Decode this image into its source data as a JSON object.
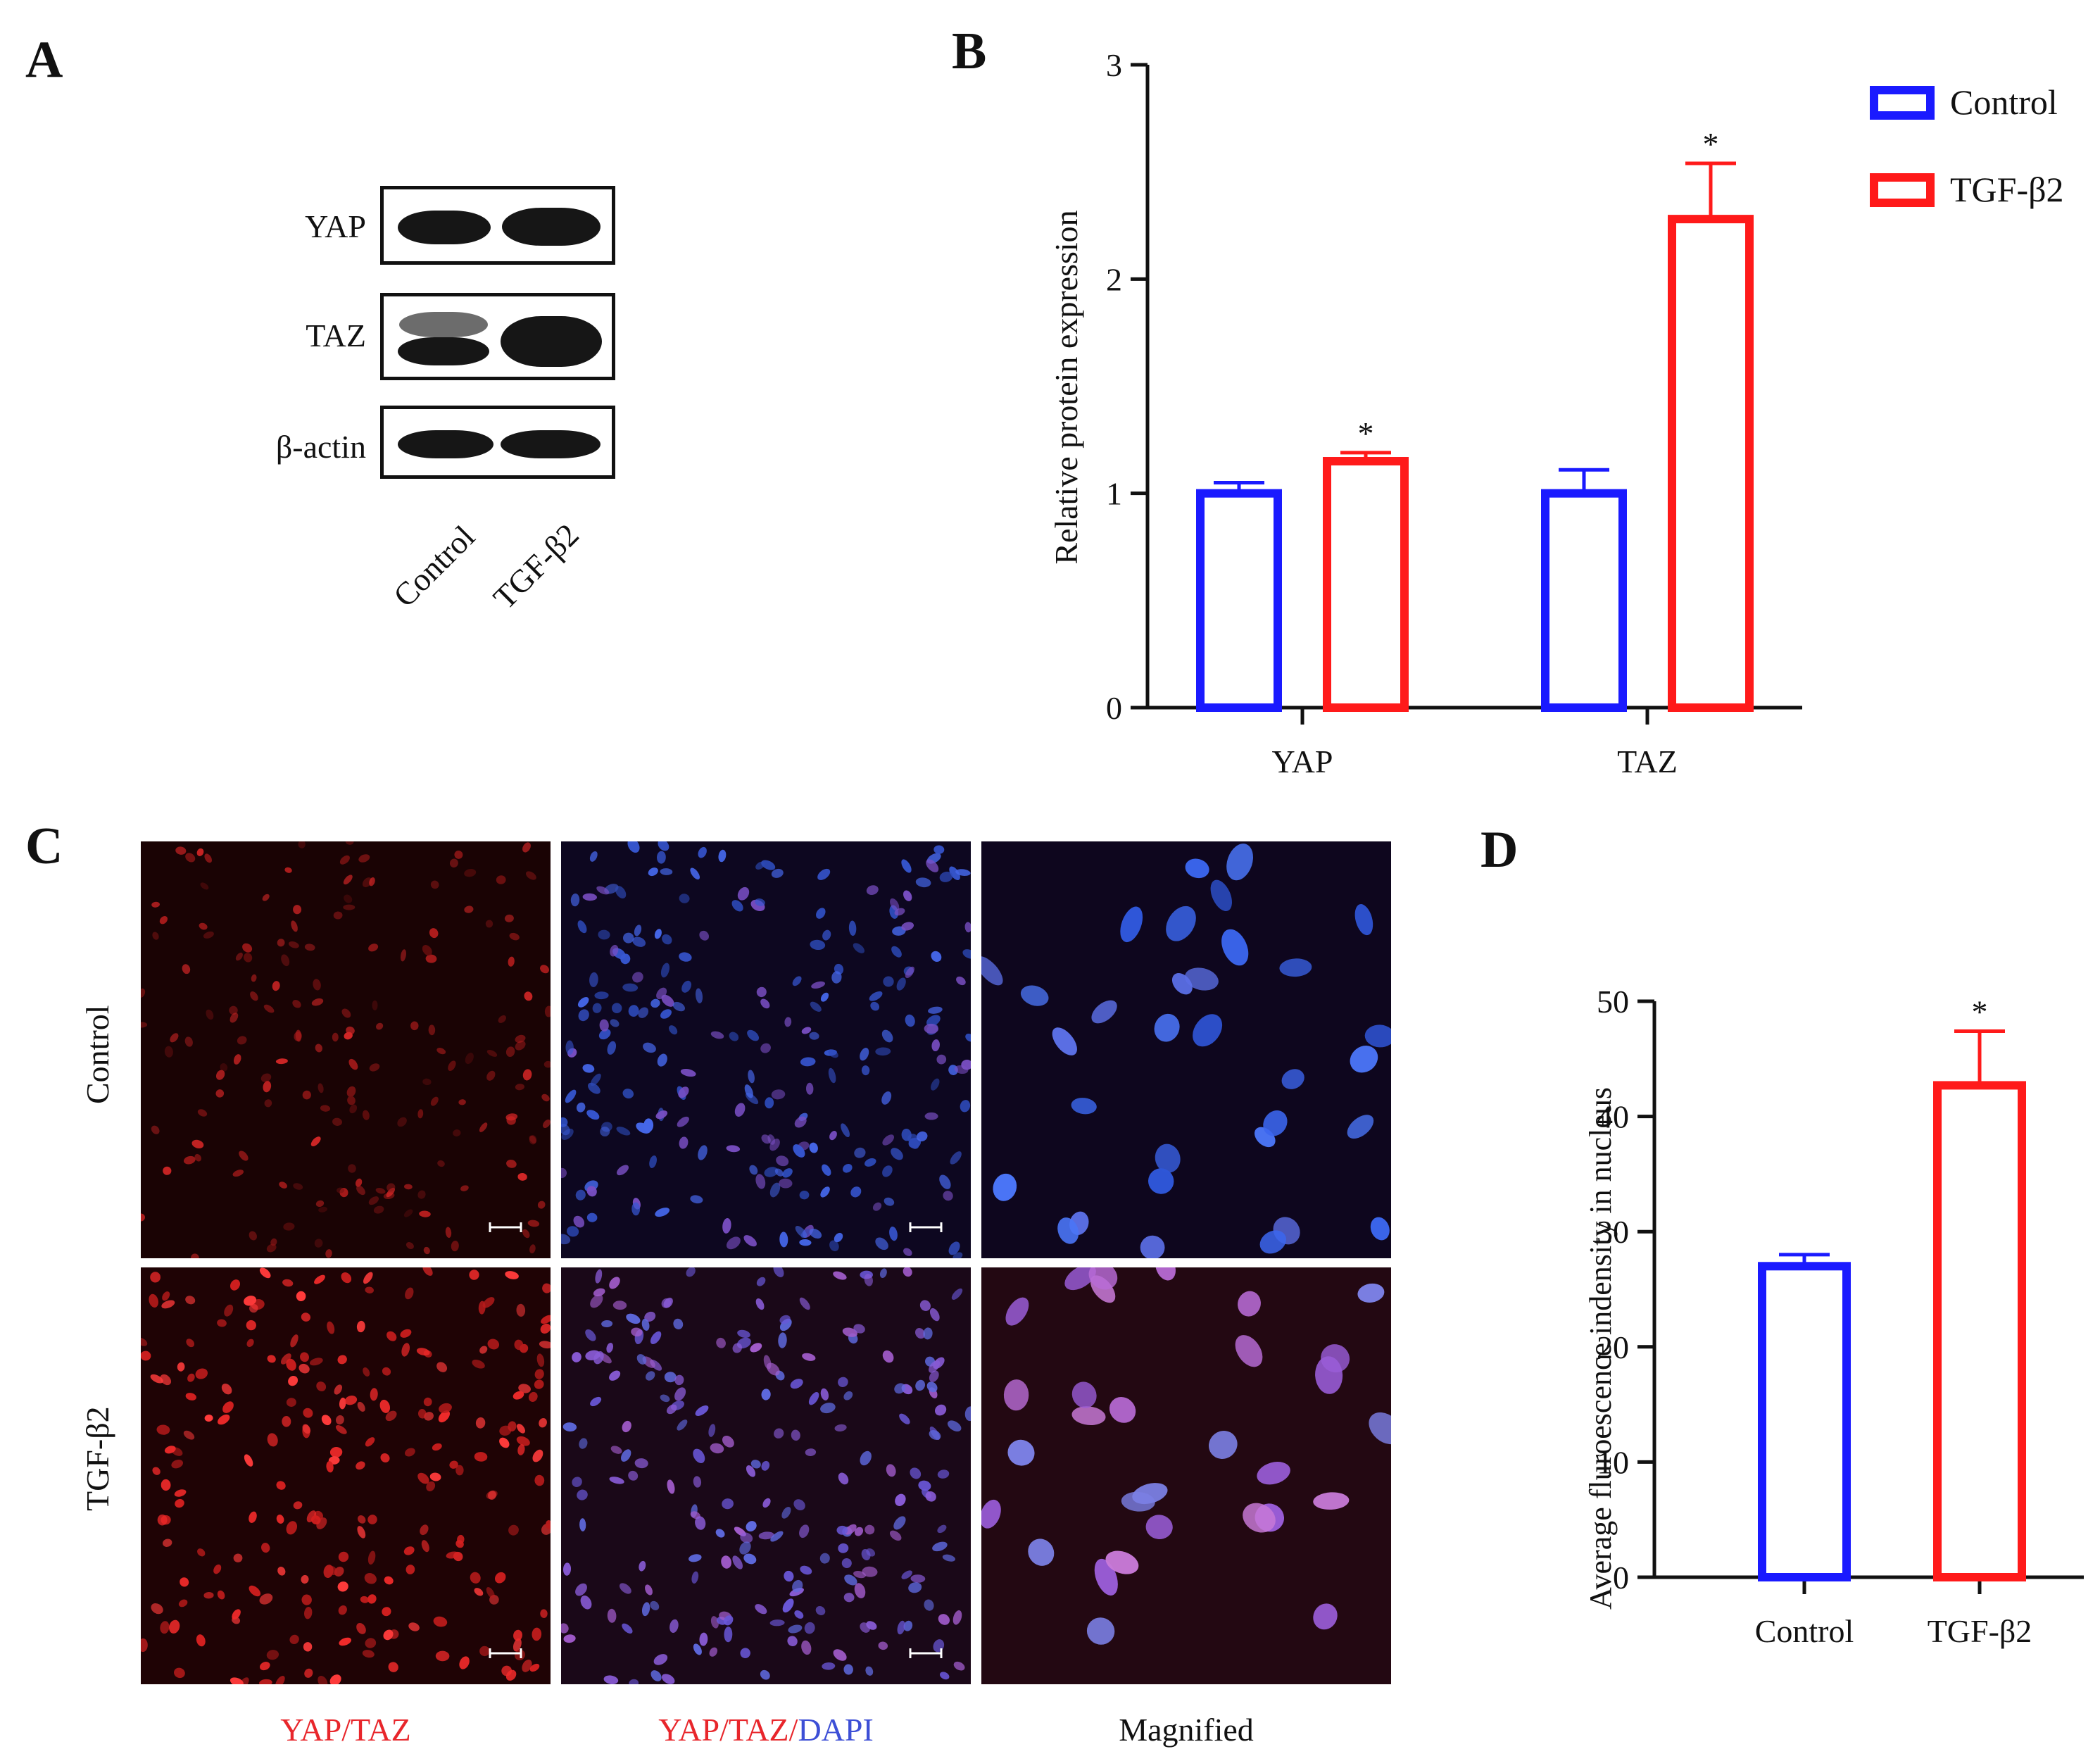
{
  "panels": {
    "a": "A",
    "b": "B",
    "c": "C",
    "d": "D"
  },
  "western_blot": {
    "rows": [
      "YAP",
      "TAZ",
      "β-actin"
    ],
    "lanes": [
      "Control",
      "TGF-β2"
    ]
  },
  "chart_data": [
    {
      "type": "bar",
      "panel": "B",
      "categories": [
        "YAP",
        "TAZ"
      ],
      "series": [
        {
          "name": "Control",
          "color": "#1a1aff",
          "values": [
            1.0,
            1.0
          ],
          "errors": [
            0.05,
            0.11
          ]
        },
        {
          "name": "TGF-β2",
          "color": "#ff1a1a",
          "values": [
            1.15,
            2.28
          ],
          "errors": [
            0.04,
            0.26
          ]
        }
      ],
      "significance": [
        "*",
        "*"
      ],
      "ylabel": "Relative protein expression",
      "ylim": [
        0,
        3
      ],
      "yticks": [
        "0",
        "1",
        "2",
        "3"
      ],
      "legend": "top-right"
    },
    {
      "type": "bar",
      "panel": "D",
      "categories": [
        "Control",
        "TGF-β2"
      ],
      "values": [
        27,
        42.7
      ],
      "errors": [
        1.0,
        4.7
      ],
      "colors": [
        "#1a1aff",
        "#ff1a1a"
      ],
      "significance": [
        "",
        "*"
      ],
      "ylabel": "Average fluroescence indensity in nucleus",
      "ylim": [
        0,
        50
      ],
      "yticks": [
        "0",
        "10",
        "20",
        "30",
        "40",
        "50"
      ]
    }
  ],
  "microscopy": {
    "row_labels": [
      "Control",
      "TGF-β2"
    ],
    "captions": {
      "col1": "YAP/TAZ",
      "col2_red": "YAP/TAZ/",
      "col2_blue": "DAPI",
      "col3": "Magnified"
    },
    "colors": {
      "red": "#e8262b",
      "blue": "#3d4fd6"
    }
  }
}
